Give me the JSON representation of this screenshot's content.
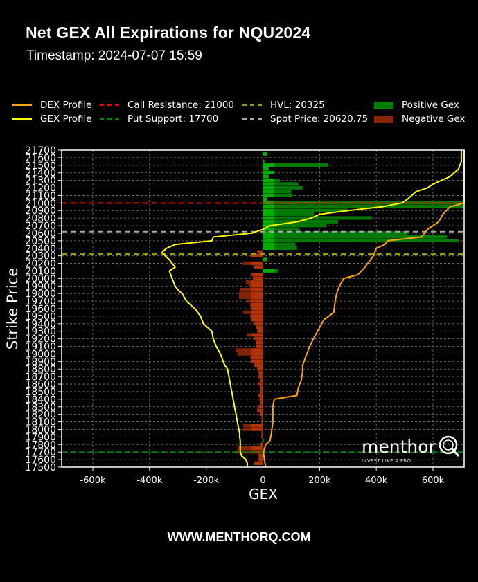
{
  "header": {
    "title": "Net GEX All Expirations for NQU2024",
    "timestamp": "Timestamp: 2024-07-07 15:59"
  },
  "legend": {
    "items": [
      {
        "label": "DEX Profile",
        "kind": "line",
        "color": "#ffa500",
        "style": "solid"
      },
      {
        "label": "GEX Profile",
        "kind": "line",
        "color": "#ffff00",
        "style": "solid"
      },
      {
        "label": "Call Resistance: 21000",
        "kind": "line",
        "color": "#ff0000",
        "style": "dashed"
      },
      {
        "label": "Put Support: 17700",
        "kind": "line",
        "color": "#008000",
        "style": "dashed"
      },
      {
        "label": "HVL: 20325",
        "kind": "line",
        "color": "#9a9a00",
        "style": "dashed"
      },
      {
        "label": "Spot Price: 20620.75",
        "kind": "line",
        "color": "#a9a9a9",
        "style": "dashed"
      },
      {
        "label": "Positive Gex",
        "kind": "patch",
        "color": "#008000"
      },
      {
        "label": "Negative Gex",
        "kind": "patch",
        "color": "#8b2500"
      }
    ]
  },
  "footer": {
    "url": "WWW.MENTHORQ.COM"
  },
  "logo": {
    "word": "menthor",
    "tagline": "INVEST LIKE A PRO"
  },
  "chart_data": {
    "type": "bar",
    "orientation": "horizontal",
    "title": "Net GEX All Expirations for NQU2024",
    "subtitle": "Timestamp: 2024-07-07 15:59",
    "xlabel": "GEX",
    "ylabel": "Strike Price",
    "xlim": [
      -710000,
      710000
    ],
    "ylim": [
      17500,
      21700
    ],
    "xticks": [
      -600000,
      -400000,
      -200000,
      0,
      200000,
      400000,
      600000
    ],
    "xtick_labels": [
      "-600k",
      "-400k",
      "-200k",
      "0",
      "200k",
      "400k",
      "600k"
    ],
    "yticks": [
      17500,
      17600,
      17700,
      17800,
      17900,
      18000,
      18100,
      18200,
      18300,
      18400,
      18500,
      18600,
      18700,
      18800,
      18900,
      19000,
      19100,
      19200,
      19300,
      19400,
      19500,
      19600,
      19700,
      19800,
      19900,
      20000,
      20100,
      20200,
      20300,
      20400,
      20500,
      20600,
      20700,
      20800,
      20900,
      21000,
      21100,
      21200,
      21300,
      21400,
      21500,
      21600,
      21700
    ],
    "grid": true,
    "legend_position": "top",
    "reference_lines": [
      {
        "name": "Call Resistance",
        "value": 21000,
        "color": "#ff0000"
      },
      {
        "name": "Put Support",
        "value": 17700,
        "color": "#008000"
      },
      {
        "name": "HVL",
        "value": 20325,
        "color": "#9a9a00"
      },
      {
        "name": "Spot Price",
        "value": 20620.75,
        "color": "#a9a9a9"
      }
    ],
    "gex_bars": [
      {
        "strike": 21650,
        "value": 15000
      },
      {
        "strike": 21550,
        "value": 5000
      },
      {
        "strike": 21500,
        "value": 230000
      },
      {
        "strike": 21450,
        "value": 20000
      },
      {
        "strike": 21400,
        "value": 40000
      },
      {
        "strike": 21350,
        "value": 20000
      },
      {
        "strike": 21300,
        "value": 60000
      },
      {
        "strike": 21250,
        "value": 125000
      },
      {
        "strike": 21200,
        "value": 140000
      },
      {
        "strike": 21150,
        "value": 100000
      },
      {
        "strike": 21100,
        "value": 105000
      },
      {
        "strike": 21050,
        "value": 15000
      },
      {
        "strike": 21000,
        "value": 710000
      },
      {
        "strike": 20950,
        "value": 710000
      },
      {
        "strike": 20900,
        "value": 300000
      },
      {
        "strike": 20850,
        "value": 180000
      },
      {
        "strike": 20800,
        "value": 385000
      },
      {
        "strike": 20750,
        "value": 265000
      },
      {
        "strike": 20700,
        "value": 225000
      },
      {
        "strike": 20650,
        "value": 130000
      },
      {
        "strike": 20600,
        "value": 510000
      },
      {
        "strike": 20550,
        "value": 650000
      },
      {
        "strike": 20500,
        "value": 690000
      },
      {
        "strike": 20450,
        "value": 115000
      },
      {
        "strike": 20400,
        "value": 120000
      },
      {
        "strike": 20350,
        "value": -20000
      },
      {
        "strike": 20300,
        "value": -45000
      },
      {
        "strike": 20250,
        "value": 15000
      },
      {
        "strike": 20200,
        "value": -70000
      },
      {
        "strike": 20150,
        "value": -30000
      },
      {
        "strike": 20100,
        "value": 55000
      },
      {
        "strike": 20050,
        "value": -40000
      },
      {
        "strike": 20000,
        "value": -35000
      },
      {
        "strike": 19950,
        "value": -60000
      },
      {
        "strike": 19900,
        "value": -50000
      },
      {
        "strike": 19850,
        "value": -80000
      },
      {
        "strike": 19800,
        "value": -85000
      },
      {
        "strike": 19750,
        "value": -85000
      },
      {
        "strike": 19700,
        "value": -55000
      },
      {
        "strike": 19650,
        "value": -45000
      },
      {
        "strike": 19600,
        "value": -40000
      },
      {
        "strike": 19550,
        "value": -70000
      },
      {
        "strike": 19500,
        "value": -45000
      },
      {
        "strike": 19450,
        "value": -40000
      },
      {
        "strike": 19400,
        "value": -30000
      },
      {
        "strike": 19350,
        "value": -25000
      },
      {
        "strike": 19300,
        "value": -20000
      },
      {
        "strike": 19250,
        "value": -55000
      },
      {
        "strike": 19200,
        "value": -30000
      },
      {
        "strike": 19150,
        "value": -25000
      },
      {
        "strike": 19100,
        "value": -25000
      },
      {
        "strike": 19050,
        "value": -95000
      },
      {
        "strike": 19000,
        "value": -90000
      },
      {
        "strike": 18950,
        "value": -45000
      },
      {
        "strike": 18900,
        "value": -40000
      },
      {
        "strike": 18850,
        "value": -30000
      },
      {
        "strike": 18800,
        "value": -20000
      },
      {
        "strike": 18750,
        "value": -15000
      },
      {
        "strike": 18700,
        "value": -15000
      },
      {
        "strike": 18650,
        "value": -10000
      },
      {
        "strike": 18600,
        "value": -15000
      },
      {
        "strike": 18550,
        "value": -10000
      },
      {
        "strike": 18500,
        "value": -10000
      },
      {
        "strike": 18450,
        "value": -15000
      },
      {
        "strike": 18400,
        "value": -12000
      },
      {
        "strike": 18350,
        "value": -10000
      },
      {
        "strike": 18300,
        "value": -15000
      },
      {
        "strike": 18250,
        "value": -20000
      },
      {
        "strike": 18200,
        "value": -10000
      },
      {
        "strike": 18150,
        "value": -5000
      },
      {
        "strike": 18100,
        "value": -5000
      },
      {
        "strike": 18050,
        "value": -70000
      },
      {
        "strike": 18000,
        "value": -70000
      },
      {
        "strike": 17950,
        "value": -5000
      },
      {
        "strike": 17900,
        "value": -5000
      },
      {
        "strike": 17850,
        "value": 3000
      },
      {
        "strike": 17800,
        "value": -10000
      },
      {
        "strike": 17750,
        "value": -90000
      },
      {
        "strike": 17700,
        "value": -95000
      },
      {
        "strike": 17650,
        "value": -15000
      },
      {
        "strike": 17600,
        "value": -15000
      },
      {
        "strike": 17550,
        "value": -30000
      }
    ],
    "gex_profile": [
      [
        17500,
        -55000
      ],
      [
        17550,
        -55000
      ],
      [
        17600,
        -60000
      ],
      [
        17650,
        -75000
      ],
      [
        17700,
        -80000
      ],
      [
        17750,
        -80000
      ],
      [
        17800,
        -80000
      ],
      [
        17850,
        -80000
      ],
      [
        17900,
        -82000
      ],
      [
        17950,
        -82000
      ],
      [
        18000,
        -85000
      ],
      [
        18100,
        -90000
      ],
      [
        18200,
        -95000
      ],
      [
        18300,
        -100000
      ],
      [
        18400,
        -105000
      ],
      [
        18500,
        -110000
      ],
      [
        18600,
        -115000
      ],
      [
        18700,
        -120000
      ],
      [
        18800,
        -125000
      ],
      [
        18850,
        -135000
      ],
      [
        18900,
        -140000
      ],
      [
        19000,
        -150000
      ],
      [
        19100,
        -165000
      ],
      [
        19200,
        -175000
      ],
      [
        19300,
        -180000
      ],
      [
        19400,
        -210000
      ],
      [
        19500,
        -220000
      ],
      [
        19600,
        -240000
      ],
      [
        19700,
        -270000
      ],
      [
        19800,
        -285000
      ],
      [
        19850,
        -300000
      ],
      [
        19900,
        -310000
      ],
      [
        20000,
        -320000
      ],
      [
        20100,
        -330000
      ],
      [
        20150,
        -310000
      ],
      [
        20200,
        -320000
      ],
      [
        20250,
        -330000
      ],
      [
        20300,
        -345000
      ],
      [
        20350,
        -355000
      ],
      [
        20400,
        -340000
      ],
      [
        20450,
        -310000
      ],
      [
        20500,
        -180000
      ],
      [
        20550,
        -175000
      ],
      [
        20600,
        -40000
      ],
      [
        20650,
        0
      ],
      [
        20700,
        25000
      ],
      [
        20750,
        120000
      ],
      [
        20800,
        170000
      ],
      [
        20850,
        200000
      ],
      [
        20900,
        300000
      ],
      [
        20950,
        420000
      ],
      [
        21000,
        490000
      ],
      [
        21050,
        510000
      ],
      [
        21100,
        525000
      ],
      [
        21150,
        540000
      ],
      [
        21200,
        580000
      ],
      [
        21250,
        600000
      ],
      [
        21300,
        630000
      ],
      [
        21350,
        660000
      ],
      [
        21450,
        690000
      ],
      [
        21550,
        700000
      ],
      [
        21700,
        700000
      ]
    ],
    "dex_profile": [
      [
        17500,
        10000
      ],
      [
        17600,
        5000
      ],
      [
        17700,
        2000
      ],
      [
        17800,
        10000
      ],
      [
        17850,
        25000
      ],
      [
        17950,
        30000
      ],
      [
        18100,
        35000
      ],
      [
        18200,
        35000
      ],
      [
        18300,
        35000
      ],
      [
        18400,
        40000
      ],
      [
        18450,
        120000
      ],
      [
        18550,
        125000
      ],
      [
        18650,
        135000
      ],
      [
        18750,
        140000
      ],
      [
        18850,
        140000
      ],
      [
        19000,
        155000
      ],
      [
        19100,
        165000
      ],
      [
        19250,
        185000
      ],
      [
        19350,
        200000
      ],
      [
        19450,
        215000
      ],
      [
        19550,
        250000
      ],
      [
        19700,
        255000
      ],
      [
        19800,
        260000
      ],
      [
        19900,
        270000
      ],
      [
        20000,
        285000
      ],
      [
        20050,
        335000
      ],
      [
        20150,
        360000
      ],
      [
        20250,
        380000
      ],
      [
        20300,
        390000
      ],
      [
        20400,
        400000
      ],
      [
        20450,
        430000
      ],
      [
        20500,
        440000
      ],
      [
        20550,
        560000
      ],
      [
        20650,
        580000
      ],
      [
        20750,
        620000
      ],
      [
        20850,
        635000
      ],
      [
        20950,
        660000
      ],
      [
        21000,
        730000
      ],
      [
        21100,
        745000
      ],
      [
        21200,
        760000
      ],
      [
        21300,
        770000
      ],
      [
        21450,
        775000
      ],
      [
        21550,
        780000
      ],
      [
        21700,
        780000
      ]
    ]
  }
}
